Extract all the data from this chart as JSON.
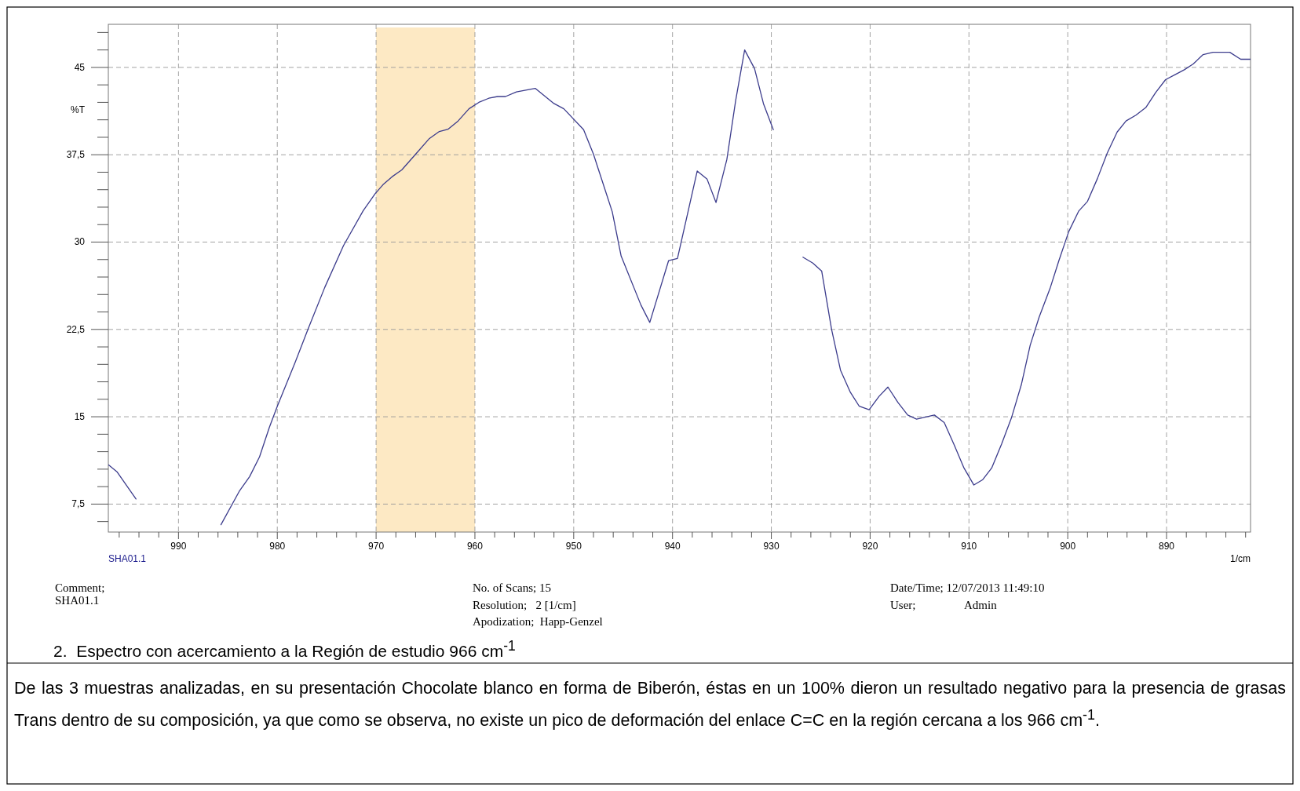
{
  "chart_data": {
    "type": "line",
    "title": "2.  Espectro con acercamiento a la Región de estudio 966 cm$^{-1}$",
    "xlabel": "1/cm",
    "ylabel": "%T",
    "x": [
      997.07,
      996.2,
      994.3,
      992.0,
      989,
      986.6,
      985.7,
      983.8,
      982.8,
      981.8,
      980.8,
      980.0,
      978.2,
      976.9,
      975.2,
      973.3,
      971.3,
      970.1,
      969.3,
      968.4,
      967.4,
      966.0,
      964.6,
      963.6,
      962.7,
      961.7,
      960.6,
      959.6,
      958.6,
      957.7,
      956.9,
      955.8,
      953.9,
      952.0,
      951.0,
      949.0,
      948.0,
      946.1,
      945.2,
      943.2,
      942.3,
      940.4,
      939.5,
      937.5,
      936.5,
      935.6,
      934.5,
      933.6,
      932.7,
      931.7,
      930.8,
      929.8,
      929.3,
      928.6,
      928.0,
      926.8,
      925.8,
      924.9,
      923.9,
      923.0,
      922.0,
      921.1,
      920.1,
      919.1,
      918.2,
      917.2,
      916.2,
      915.3,
      913.5,
      912.5,
      911.5,
      910.5,
      909.5,
      908.6,
      907.7,
      906.7,
      905.7,
      904.7,
      903.8,
      902.9,
      901.8,
      900.9,
      899.9,
      898.9,
      898.0,
      897.0,
      896.0,
      895.0,
      894.1,
      893.1,
      892.1,
      891.1,
      890.1,
      889.1,
      888.2,
      887.3,
      886.3,
      885.3,
      883.6,
      882.5,
      881.5
    ],
    "series": [
      {
        "color": "#3c3c8c",
        "values": [
          10.86,
          10.25,
          7.94,
          null,
          null,
          null,
          5.73,
          8.67,
          9.86,
          11.55,
          14.1,
          15.9,
          19.66,
          22.5,
          26.1,
          29.7,
          32.7,
          34.15,
          34.93,
          35.6,
          36.2,
          37.55,
          38.9,
          39.5,
          39.7,
          40.4,
          41.45,
          42.0,
          42.35,
          42.5,
          42.5,
          42.9,
          43.2,
          41.9,
          41.45,
          39.65,
          37.55,
          32.6,
          28.8,
          24.6,
          23.1,
          28.4,
          28.6,
          36.1,
          35.4,
          33.4,
          37.1,
          42.2,
          46.5,
          44.9,
          41.9,
          39.65,
          null,
          null,
          null,
          28.7,
          28.2,
          27.5,
          22.5,
          19.0,
          17.1,
          15.9,
          15.6,
          16.75,
          17.55,
          16.25,
          15.15,
          14.8,
          15.15,
          14.5,
          12.6,
          10.6,
          9.14,
          9.6,
          10.6,
          12.65,
          14.9,
          17.75,
          21.15,
          23.55,
          26.0,
          28.4,
          30.9,
          32.65,
          33.5,
          35.45,
          37.65,
          39.45,
          40.4,
          40.9,
          41.55,
          42.85,
          43.95,
          44.4,
          44.8,
          45.3,
          46.1,
          46.3,
          46.3,
          45.7,
          45.7
        ]
      }
    ],
    "xlim": [
      997.1,
      881.5
    ],
    "ylim": [
      5.1,
      48.7
    ],
    "xticks": [
      {
        "value": 996,
        "label": null
      },
      {
        "value": 994,
        "label": null
      },
      {
        "value": 992,
        "label": null
      },
      990,
      {
        "value": 988,
        "label": null
      },
      {
        "value": 986,
        "label": null
      },
      {
        "value": 984,
        "label": null
      },
      {
        "value": 982,
        "label": null
      },
      980,
      {
        "value": 978,
        "label": null
      },
      {
        "value": 976,
        "label": null
      },
      {
        "value": 974,
        "label": null
      },
      {
        "value": 972,
        "label": null
      },
      970,
      {
        "value": 968,
        "label": null
      },
      {
        "value": 966,
        "label": null
      },
      {
        "value": 964,
        "label": null
      },
      {
        "value": 962,
        "label": null
      },
      960,
      {
        "value": 958,
        "label": null
      },
      {
        "value": 956,
        "label": null
      },
      {
        "value": 954,
        "label": null
      },
      {
        "value": 952,
        "label": null
      },
      950,
      {
        "value": 948,
        "label": null
      },
      {
        "value": 946,
        "label": null
      },
      {
        "value": 944,
        "label": null
      },
      {
        "value": 942,
        "label": null
      },
      940,
      {
        "value": 938,
        "label": null
      },
      {
        "value": 936,
        "label": null
      },
      {
        "value": 934,
        "label": null
      },
      {
        "value": 932,
        "label": null
      },
      930,
      {
        "value": 928,
        "label": null
      },
      {
        "value": 926,
        "label": null
      },
      {
        "value": 924,
        "label": null
      },
      {
        "value": 922,
        "label": null
      },
      920,
      {
        "value": 918,
        "label": null
      },
      {
        "value": 916,
        "label": null
      },
      {
        "value": 914,
        "label": null
      },
      {
        "value": 912,
        "label": null
      },
      910,
      {
        "value": 908,
        "label": null
      },
      {
        "value": 906,
        "label": null
      },
      {
        "value": 904,
        "label": null
      },
      {
        "value": 902,
        "label": null
      },
      900,
      {
        "value": 898,
        "label": null
      },
      {
        "value": 896,
        "label": null
      },
      {
        "value": 894,
        "label": null
      },
      {
        "value": 892,
        "label": null
      },
      890,
      {
        "value": 888,
        "label": null
      },
      {
        "value": 886,
        "label": null
      },
      {
        "value": 884,
        "label": null
      },
      {
        "value": 882,
        "label": null
      }
    ],
    "yticks": [
      {
        "value": 6,
        "label": null
      },
      {
        "value": 7.5,
        "label": "7,5"
      },
      {
        "value": 9,
        "label": null
      },
      {
        "value": 10.5,
        "label": null
      },
      {
        "value": 12,
        "label": null
      },
      {
        "value": 13.5,
        "label": null
      },
      15,
      {
        "value": 16.5,
        "label": null
      },
      {
        "value": 18,
        "label": null
      },
      {
        "value": 19.5,
        "label": null
      },
      {
        "value": 21,
        "label": null
      },
      {
        "value": 22.5,
        "label": "22,5"
      },
      {
        "value": 24,
        "label": null
      },
      {
        "value": 25.5,
        "label": null
      },
      {
        "value": 27,
        "label": null
      },
      {
        "value": 28.5,
        "label": null
      },
      30,
      {
        "value": 31.5,
        "label": null
      },
      {
        "value": 33,
        "label": null
      },
      {
        "value": 34.5,
        "label": null
      },
      {
        "value": 36,
        "label": null
      },
      {
        "value": 37.5,
        "label": "37,5"
      },
      {
        "value": 39,
        "label": null
      },
      {
        "value": 40.5,
        "label": null
      },
      {
        "value": 42,
        "label": null
      },
      {
        "value": 43.5,
        "label": null
      },
      45,
      {
        "value": 46.5,
        "label": null
      },
      {
        "value": 48,
        "label": null
      }
    ],
    "grid": true,
    "line_style": "solid",
    "marker": "none",
    "bands": [
      {
        "axis": "x",
        "from": 970,
        "to": 960,
        "color": "#fde9c4"
      }
    ],
    "annotations": [
      "SHA01.1",
      "Comment;",
      "SHA01.1",
      "No. of Scans; 15",
      "Resolution;   2 [1/cm]",
      "Apodization;  Happ-Genzel",
      "Date/Time; 12/07/2013 11:49:10",
      "User;",
      "Admin",
      "De las 3 muestras analizadas, en su presentación Chocolate blanco en forma de Biberón, éstas en un 100% dieron un resultado negativo para la presencia de grasas Trans dentro de  su composición, ya que como se observa, no existe un pico de deformación del enlace C=C en la región cercana a los 966 cm$^{-1}$."
    ]
  }
}
